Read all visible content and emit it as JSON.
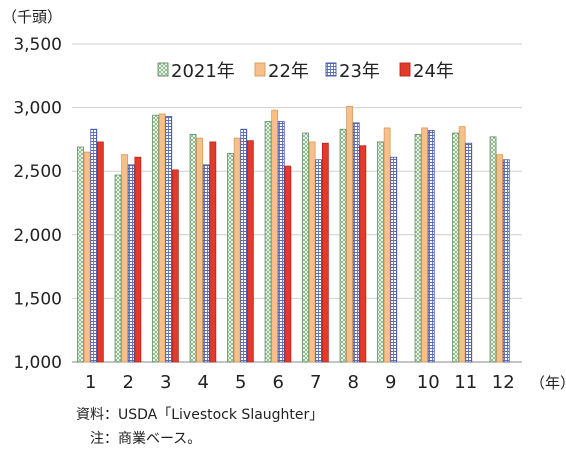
{
  "chart_data": {
    "type": "bar",
    "y_unit_label": "（千頭）",
    "x_unit_label": "（年）",
    "ylim": [
      1000,
      3500
    ],
    "yticks": [
      "1,000",
      "1,500",
      "2,000",
      "2,500",
      "3,000",
      "3,500"
    ],
    "ytick_values": [
      1000,
      1500,
      2000,
      2500,
      3000,
      3500
    ],
    "grid": true,
    "legend_position": "top",
    "categories": [
      "1",
      "2",
      "3",
      "4",
      "5",
      "6",
      "7",
      "8",
      "9",
      "10",
      "11",
      "12"
    ],
    "series": [
      {
        "name": "2021年",
        "pattern": "crosshatch",
        "color": "#8fb98f",
        "values": [
          2690,
          2470,
          2940,
          2790,
          2640,
          2890,
          2800,
          2830,
          2730,
          2790,
          2800,
          2770
        ]
      },
      {
        "name": "22年",
        "pattern": "solid",
        "color": "#f7c08a",
        "values": [
          2650,
          2630,
          2950,
          2760,
          2760,
          2980,
          2730,
          3010,
          2840,
          2840,
          2850,
          2630
        ]
      },
      {
        "name": "23年",
        "pattern": "grid",
        "color": "#6a7fc4",
        "values": [
          2830,
          2550,
          2930,
          2550,
          2830,
          2890,
          2590,
          2880,
          2610,
          2820,
          2720,
          2590
        ]
      },
      {
        "name": "24年",
        "pattern": "solid",
        "color": "#e23b2b",
        "values": [
          2730,
          2610,
          2510,
          2730,
          2740,
          2540,
          2720,
          2700,
          null,
          null,
          null,
          null
        ]
      }
    ]
  },
  "notes": {
    "source": "資料：USDA「Livestock Slaughter」",
    "note": "注：商業ベース。"
  }
}
